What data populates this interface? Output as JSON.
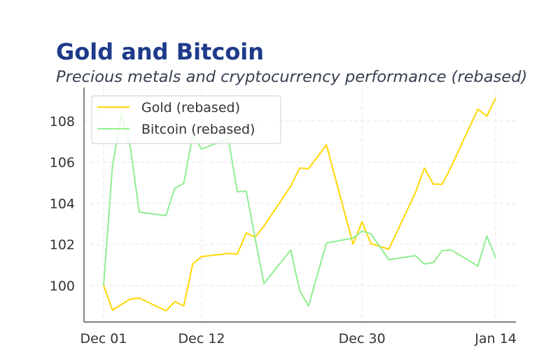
{
  "header": {
    "title": "Gold and Bitcoin",
    "subtitle": "Precious metals and cryptocurrency performance (rebased)"
  },
  "legend": {
    "items": [
      {
        "label": "Gold (rebased)",
        "color": "#FFD700"
      },
      {
        "label": "Bitcoin (rebased)",
        "color": "#90EE90"
      }
    ]
  },
  "axes": {
    "x_ticks": [
      "Dec 01",
      "Dec 12",
      "Dec 30",
      "Jan 14"
    ],
    "y_ticks": [
      "100",
      "102",
      "104",
      "106",
      "108"
    ]
  },
  "chart_data": {
    "type": "line",
    "title": "Gold and Bitcoin",
    "subtitle": "Precious metals and cryptocurrency performance (rebased)",
    "xlabel": "",
    "ylabel": "",
    "x": [
      "Dec 01",
      "Dec 02",
      "Dec 03",
      "Dec 04",
      "Dec 05",
      "Dec 08",
      "Dec 09",
      "Dec 10",
      "Dec 11",
      "Dec 12",
      "Dec 15",
      "Dec 16",
      "Dec 17",
      "Dec 18",
      "Dec 19",
      "Dec 22",
      "Dec 23",
      "Dec 24",
      "Dec 26",
      "Dec 29",
      "Dec 30",
      "Dec 31",
      "Jan 02",
      "Jan 05",
      "Jan 06",
      "Jan 07",
      "Jan 08",
      "Jan 09",
      "Jan 12",
      "Jan 13",
      "Jan 14"
    ],
    "x_day_offsets": [
      0,
      1,
      2,
      3,
      4,
      7,
      8,
      9,
      10,
      11,
      14,
      15,
      16,
      17,
      18,
      21,
      22,
      23,
      25,
      28,
      29,
      30,
      32,
      35,
      36,
      37,
      38,
      39,
      42,
      43,
      44
    ],
    "series": [
      {
        "name": "Gold (rebased)",
        "color": "#FFD700",
        "values": [
          100.0,
          98.81,
          99.08,
          99.35,
          99.39,
          98.78,
          99.22,
          99.01,
          101.05,
          101.41,
          101.56,
          101.53,
          102.55,
          102.35,
          102.89,
          104.83,
          105.71,
          105.68,
          106.84,
          102.01,
          103.1,
          102.04,
          101.77,
          104.52,
          105.71,
          104.93,
          104.93,
          105.78,
          108.57,
          108.23,
          109.12
        ]
      },
      {
        "name": "Bitcoin (rebased)",
        "color": "#90EE90",
        "values": [
          100.0,
          105.82,
          108.33,
          106.73,
          103.57,
          103.4,
          104.73,
          104.97,
          107.31,
          106.63,
          107.14,
          104.56,
          104.59,
          102.31,
          100.1,
          101.73,
          99.76,
          99.01,
          102.07,
          102.31,
          102.65,
          102.52,
          101.26,
          101.46,
          101.05,
          101.12,
          101.7,
          101.73,
          100.95,
          102.41,
          101.36
        ]
      }
    ],
    "x_tick_labels": [
      "Dec 01",
      "Dec 12",
      "Dec 30",
      "Jan 14"
    ],
    "y_tick_labels": [
      100,
      102,
      104,
      106,
      108
    ],
    "ylim": [
      98.3,
      109.7
    ],
    "grid": true,
    "legend_position": "upper left"
  }
}
